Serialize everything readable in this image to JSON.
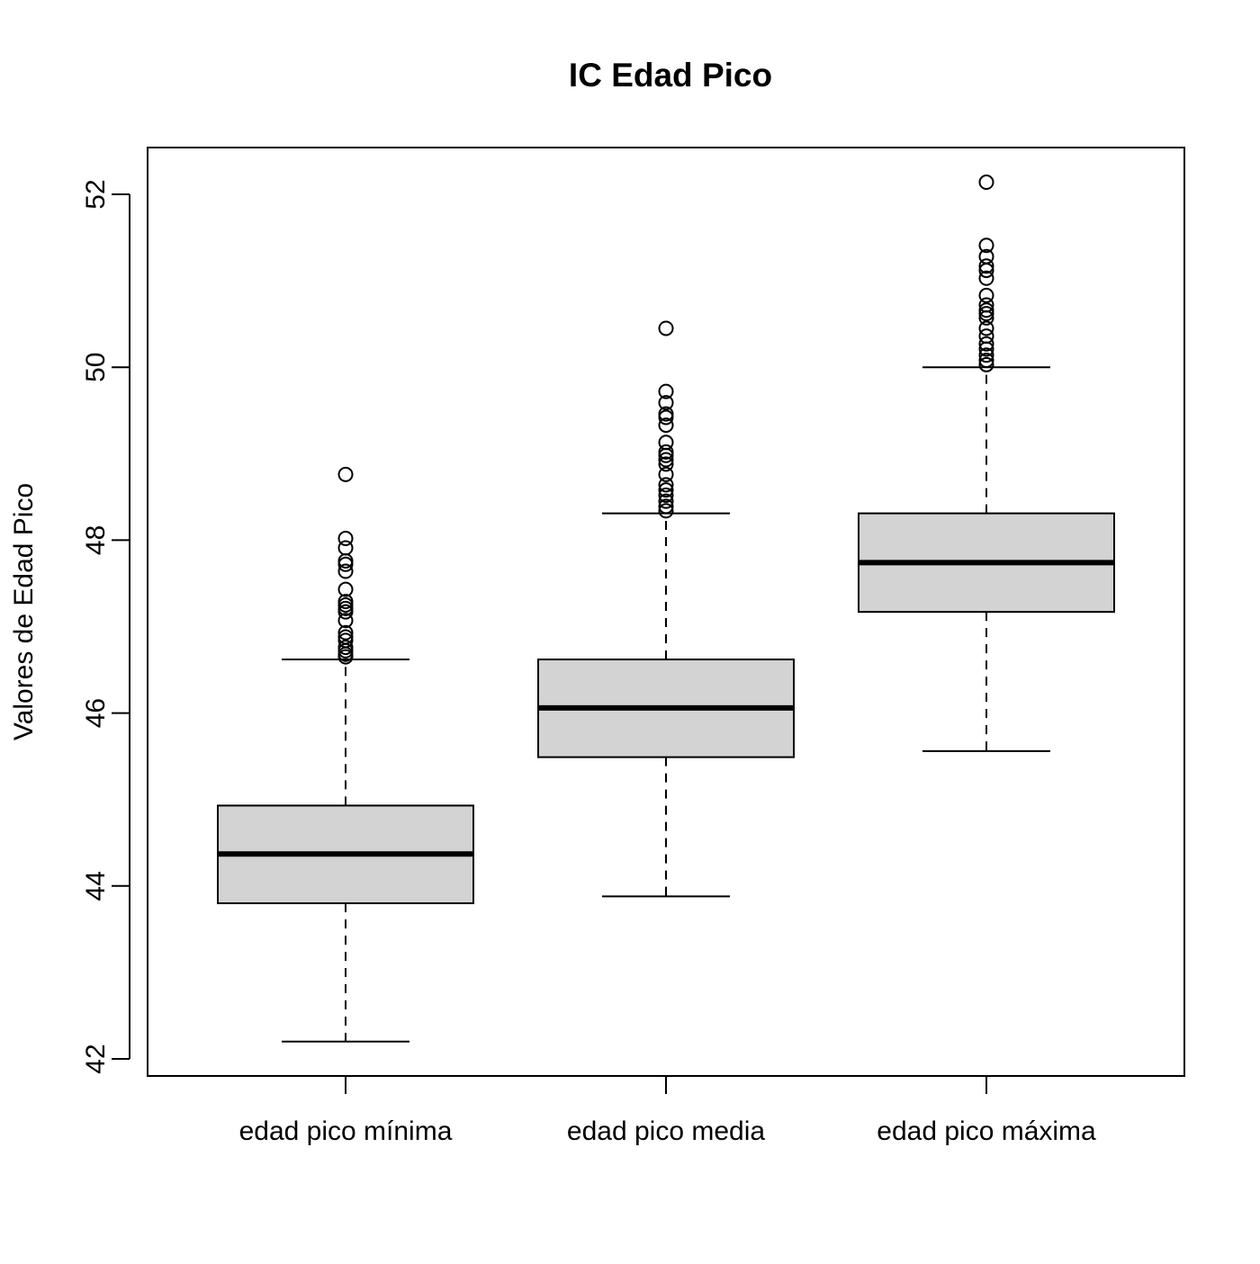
{
  "chart_data": {
    "type": "box",
    "title": "IC Edad Pico",
    "xlabel": "",
    "ylabel": "Valores de Edad Pico",
    "ylim": [
      42,
      52.5
    ],
    "yticks": [
      42,
      44,
      46,
      48,
      50,
      52
    ],
    "categories": [
      "edad pico mínima",
      "edad pico media",
      "edad pico máxima"
    ],
    "boxes": [
      {
        "category": "edad pico mínima",
        "whisker_low": 42.2,
        "q1": 43.8,
        "median": 44.37,
        "q3": 44.93,
        "whisker_high": 46.62,
        "outliers": [
          46.65,
          46.68,
          46.72,
          46.76,
          46.84,
          46.88,
          46.93,
          47.07,
          47.17,
          47.21,
          47.25,
          47.29,
          47.43,
          47.64,
          47.72,
          47.76,
          47.91,
          48.02,
          48.76
        ]
      },
      {
        "category": "edad pico media",
        "whisker_low": 43.88,
        "q1": 45.49,
        "median": 46.06,
        "q3": 46.62,
        "whisker_high": 48.31,
        "outliers": [
          48.34,
          48.39,
          48.45,
          48.52,
          48.58,
          48.64,
          48.76,
          48.88,
          48.93,
          48.98,
          49.02,
          49.13,
          49.33,
          49.42,
          49.46,
          49.59,
          49.72,
          50.45
        ]
      },
      {
        "category": "edad pico máxima",
        "whisker_low": 45.56,
        "q1": 47.17,
        "median": 47.74,
        "q3": 48.31,
        "whisker_high": 50.0,
        "outliers": [
          50.03,
          50.08,
          50.14,
          50.21,
          50.27,
          50.36,
          50.45,
          50.57,
          50.62,
          50.66,
          50.72,
          50.83,
          51.03,
          51.12,
          51.17,
          51.28,
          51.41,
          52.14
        ]
      }
    ],
    "box_fill": "#d3d3d3",
    "line_color": "#000000",
    "grid": false,
    "legend": "none"
  }
}
